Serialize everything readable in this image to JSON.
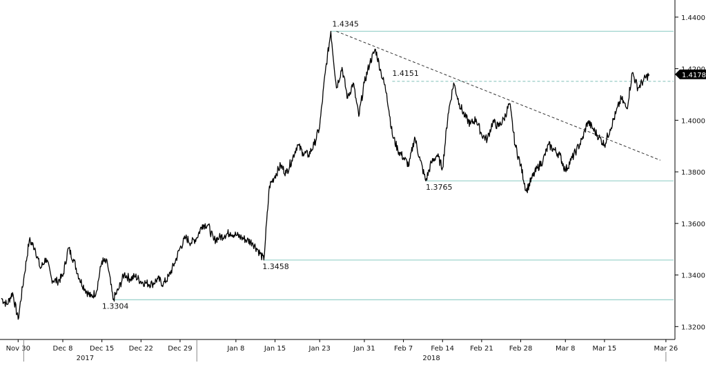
{
  "chart_data": {
    "type": "line",
    "title": "",
    "xlabel": "",
    "ylabel": "",
    "ylim": [
      1.315,
      1.4445
    ],
    "grid": false,
    "legend": "none",
    "x_ticks": [
      "Nov 30",
      "Dec 8",
      "Dec 15",
      "Dec 22",
      "Dec 29",
      "Jan 8",
      "Jan 15",
      "Jan 23",
      "Jan 31",
      "Feb 7",
      "Feb 14",
      "Feb 21",
      "Feb 28",
      "Mar 8",
      "Mar 15",
      "Mar 26"
    ],
    "year_labels": [
      "2017",
      "2018"
    ],
    "y_ticks": [
      "1.4400",
      "1.4200",
      "1.4000",
      "1.3800",
      "1.3600",
      "1.3400",
      "1.3200"
    ],
    "series": [
      {
        "color": "#000000",
        "points": [
          [
            "2017-11-27",
            1.331
          ],
          [
            "2017-11-28",
            1.3285
          ],
          [
            "2017-11-29",
            1.3332
          ],
          [
            "2017-11-30",
            1.3228
          ],
          [
            "2017-12-01",
            1.3385
          ],
          [
            "2017-12-02",
            1.3535
          ],
          [
            "2017-12-03",
            1.3505
          ],
          [
            "2017-12-04",
            1.3425
          ],
          [
            "2017-12-05",
            1.3465
          ],
          [
            "2017-12-06",
            1.3385
          ],
          [
            "2017-12-07",
            1.3375
          ],
          [
            "2017-12-08",
            1.3395
          ],
          [
            "2017-12-09",
            1.3505
          ],
          [
            "2017-12-10",
            1.3455
          ],
          [
            "2017-12-11",
            1.3385
          ],
          [
            "2017-12-12",
            1.3345
          ],
          [
            "2017-12-13",
            1.3315
          ],
          [
            "2017-12-14",
            1.3335
          ],
          [
            "2017-12-15",
            1.3455
          ],
          [
            "2017-12-16",
            1.3445
          ],
          [
            "2017-12-17",
            1.3305
          ],
          [
            "2017-12-18",
            1.3345
          ],
          [
            "2017-12-19",
            1.3405
          ],
          [
            "2017-12-20",
            1.3385
          ],
          [
            "2017-12-21",
            1.3395
          ],
          [
            "2017-12-22",
            1.3375
          ],
          [
            "2017-12-23",
            1.3368
          ],
          [
            "2017-12-24",
            1.3365
          ],
          [
            "2017-12-25",
            1.3385
          ],
          [
            "2017-12-26",
            1.3365
          ],
          [
            "2017-12-27",
            1.3395
          ],
          [
            "2017-12-28",
            1.3445
          ],
          [
            "2017-12-29",
            1.3505
          ],
          [
            "2017-12-30",
            1.3545
          ],
          [
            "2017-12-31",
            1.3525
          ],
          [
            "2018-01-01",
            1.3545
          ],
          [
            "2018-01-02",
            1.3595
          ],
          [
            "2018-01-03",
            1.3595
          ],
          [
            "2018-01-04",
            1.3535
          ],
          [
            "2018-01-05",
            1.3545
          ],
          [
            "2018-01-06",
            1.3555
          ],
          [
            "2018-01-07",
            1.3565
          ],
          [
            "2018-01-08",
            1.3555
          ],
          [
            "2018-01-09",
            1.3545
          ],
          [
            "2018-01-10",
            1.3535
          ],
          [
            "2018-01-11",
            1.3525
          ],
          [
            "2018-01-12",
            1.3495
          ],
          [
            "2018-01-13",
            1.3458
          ],
          [
            "2018-01-14",
            1.3745
          ],
          [
            "2018-01-15",
            1.3785
          ],
          [
            "2018-01-16",
            1.3825
          ],
          [
            "2018-01-17",
            1.3795
          ],
          [
            "2018-01-18",
            1.3845
          ],
          [
            "2018-01-19",
            1.3905
          ],
          [
            "2018-01-20",
            1.3875
          ],
          [
            "2018-01-21",
            1.3865
          ],
          [
            "2018-01-22",
            1.3905
          ],
          [
            "2018-01-23",
            1.3975
          ],
          [
            "2018-01-24",
            1.4185
          ],
          [
            "2018-01-25",
            1.4345
          ],
          [
            "2018-01-26",
            1.4125
          ],
          [
            "2018-01-27",
            1.4205
          ],
          [
            "2018-01-28",
            1.4085
          ],
          [
            "2018-01-29",
            1.4145
          ],
          [
            "2018-01-30",
            1.4015
          ],
          [
            "2018-01-31",
            1.4145
          ],
          [
            "2018-02-01",
            1.4225
          ],
          [
            "2018-02-02",
            1.4275
          ],
          [
            "2018-02-03",
            1.4185
          ],
          [
            "2018-02-04",
            1.4105
          ],
          [
            "2018-02-05",
            1.3945
          ],
          [
            "2018-02-06",
            1.3885
          ],
          [
            "2018-02-07",
            1.3855
          ],
          [
            "2018-02-08",
            1.3825
          ],
          [
            "2018-02-09",
            1.3935
          ],
          [
            "2018-02-10",
            1.3845
          ],
          [
            "2018-02-11",
            1.3765
          ],
          [
            "2018-02-12",
            1.3835
          ],
          [
            "2018-02-13",
            1.3865
          ],
          [
            "2018-02-14",
            1.3815
          ],
          [
            "2018-02-15",
            1.4025
          ],
          [
            "2018-02-16",
            1.4145
          ],
          [
            "2018-02-17",
            1.4065
          ],
          [
            "2018-02-18",
            1.4015
          ],
          [
            "2018-02-19",
            1.3985
          ],
          [
            "2018-02-20",
            1.4005
          ],
          [
            "2018-02-21",
            1.3945
          ],
          [
            "2018-02-22",
            1.3925
          ],
          [
            "2018-02-23",
            1.3995
          ],
          [
            "2018-02-24",
            1.3975
          ],
          [
            "2018-02-25",
            1.4005
          ],
          [
            "2018-02-26",
            1.4065
          ],
          [
            "2018-02-27",
            1.3905
          ],
          [
            "2018-02-28",
            1.3825
          ],
          [
            "2018-03-01",
            1.3725
          ],
          [
            "2018-03-02",
            1.3775
          ],
          [
            "2018-03-03",
            1.3815
          ],
          [
            "2018-03-04",
            1.3845
          ],
          [
            "2018-03-05",
            1.3905
          ],
          [
            "2018-03-06",
            1.3885
          ],
          [
            "2018-03-07",
            1.3865
          ],
          [
            "2018-03-08",
            1.3805
          ],
          [
            "2018-03-09",
            1.3845
          ],
          [
            "2018-03-10",
            1.3885
          ],
          [
            "2018-03-11",
            1.3925
          ],
          [
            "2018-03-12",
            1.3995
          ],
          [
            "2018-03-13",
            1.3965
          ],
          [
            "2018-03-14",
            1.3935
          ],
          [
            "2018-03-15",
            1.3905
          ],
          [
            "2018-03-16",
            1.3965
          ],
          [
            "2018-03-17",
            1.4025
          ],
          [
            "2018-03-18",
            1.4085
          ],
          [
            "2018-03-19",
            1.4045
          ],
          [
            "2018-03-20",
            1.4185
          ],
          [
            "2018-03-21",
            1.4125
          ],
          [
            "2018-03-22",
            1.4155
          ],
          [
            "2018-03-23",
            1.4178
          ]
        ]
      }
    ],
    "horizontal_levels": [
      1.4345,
      1.3765,
      1.3458,
      1.3304
    ],
    "dashed_level": {
      "value": 1.4151,
      "from": "2018-02-05"
    },
    "trendline": {
      "from": [
        "2018-01-26",
        1.4345
      ],
      "to": [
        "2018-03-25",
        1.3845
      ]
    },
    "annotations": [
      {
        "text": "1.4345",
        "x": "2018-01-25",
        "y": 1.4345
      },
      {
        "text": "1.4151",
        "x": "2018-02-05",
        "y": 1.4151
      },
      {
        "text": "1.3765",
        "x": "2018-02-11",
        "y": 1.3765
      },
      {
        "text": "1.3458",
        "x": "2018-01-13",
        "y": 1.3458
      },
      {
        "text": "1.3304",
        "x": "2017-12-17",
        "y": 1.3304
      }
    ],
    "last_value": "1.4178",
    "colors": {
      "line": "#000000",
      "levels": "#9fd4ce",
      "dashed_level": "#7fbfb8",
      "trend": "#333333",
      "badge": "#000000"
    }
  }
}
